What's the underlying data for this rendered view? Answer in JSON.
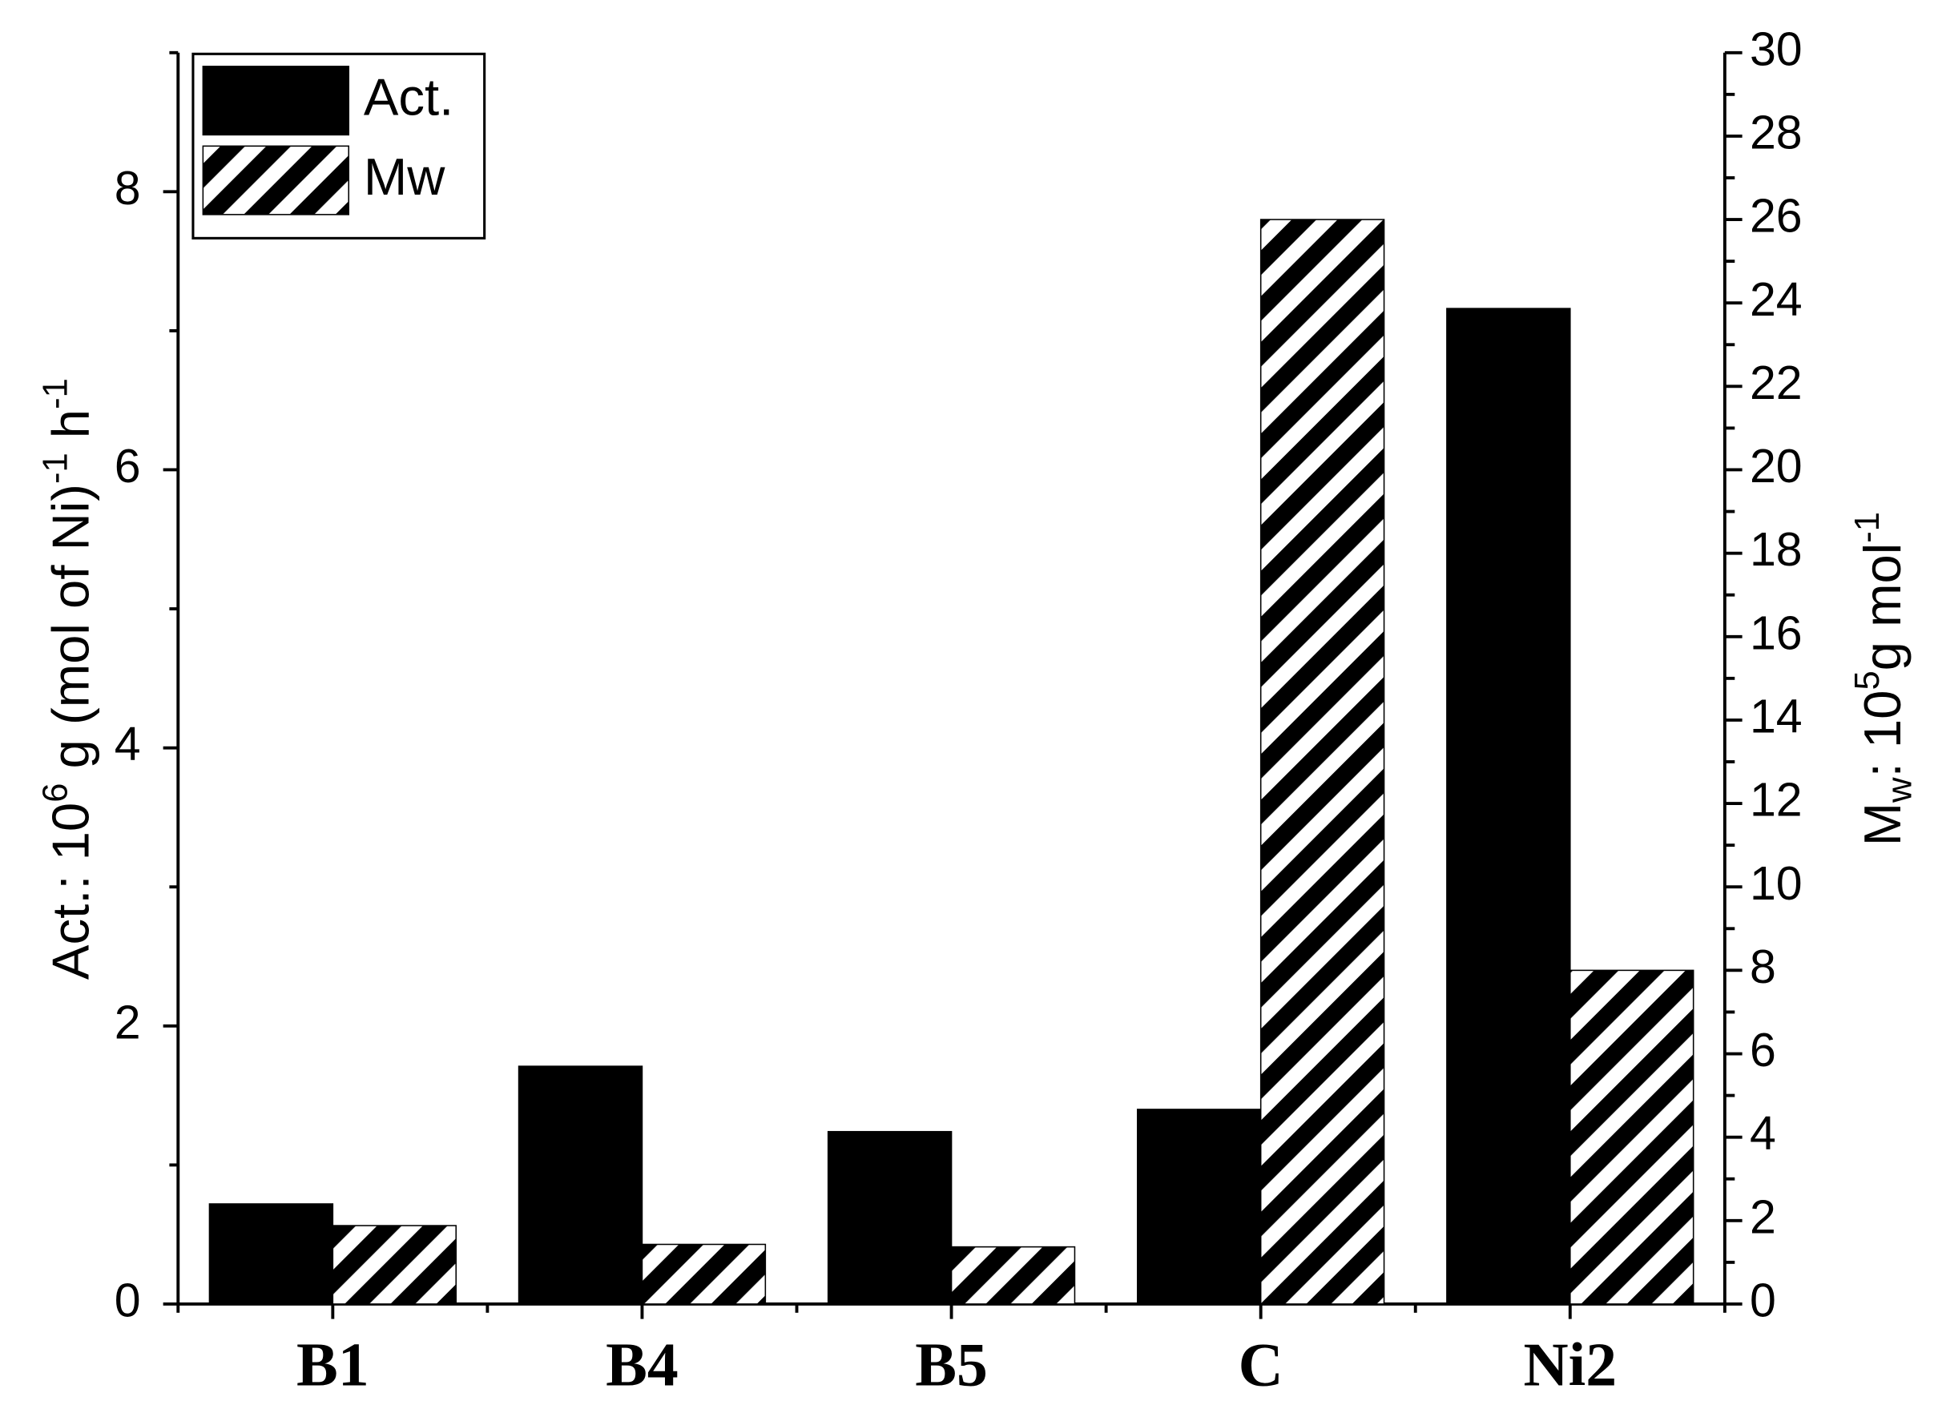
{
  "chart_data": {
    "type": "bar",
    "categories": [
      "B1",
      "B4",
      "B5",
      "C",
      "Ni2"
    ],
    "y_label": [
      "Act.: 10",
      "6",
      " g (mol of Ni)",
      "-1",
      " h",
      "-1"
    ],
    "y2_label": [
      "M",
      "w",
      ": 10",
      "5",
      "g mol",
      "-1"
    ],
    "series": [
      {
        "name": "Act.",
        "color": "#000000",
        "fill": "solid",
        "values": [
          0.72,
          1.71,
          1.24,
          1.4,
          7.16
        ]
      },
      {
        "name": "Mw",
        "color": "#000000",
        "fill": "hatch",
        "axis": "y2",
        "values": [
          1.88,
          1.43,
          1.37,
          26.0,
          8.0
        ]
      }
    ],
    "ylim": [
      0,
      9
    ],
    "yticks": [
      0,
      2,
      4,
      6,
      8
    ],
    "y2lim": [
      0,
      30
    ],
    "y2ticks": [
      0,
      2,
      4,
      6,
      8,
      10,
      12,
      14,
      16,
      18,
      20,
      22,
      24,
      26,
      28,
      30
    ],
    "legend": "top-left",
    "grid": false
  }
}
